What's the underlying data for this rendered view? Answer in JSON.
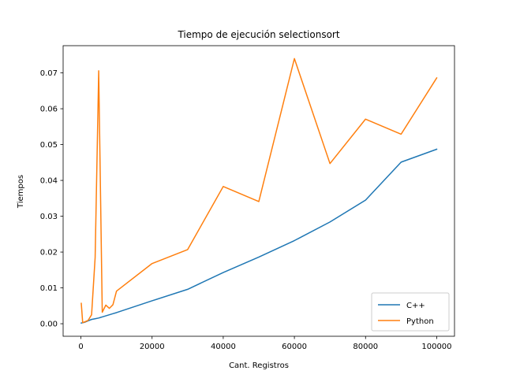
{
  "chart_data": {
    "type": "line",
    "title": "Tiempo de ejecución selectionsort",
    "xlabel": "Cant. Registros",
    "ylabel": "Tiempos",
    "xlim": [
      -5000,
      105000
    ],
    "ylim": [
      -0.0035,
      0.0776
    ],
    "xticks": [
      0,
      20000,
      40000,
      60000,
      80000,
      100000
    ],
    "xtick_labels": [
      "0",
      "20000",
      "40000",
      "60000",
      "80000",
      "100000"
    ],
    "yticks": [
      0.0,
      0.01,
      0.02,
      0.03,
      0.04,
      0.05,
      0.06,
      0.07
    ],
    "ytick_labels": [
      "0.00",
      "0.01",
      "0.02",
      "0.03",
      "0.04",
      "0.05",
      "0.06",
      "0.07"
    ],
    "grid": false,
    "legend_position": "lower-right",
    "series": [
      {
        "name": "C++",
        "color": "#1f77b4",
        "x": [
          100,
          1000,
          2000,
          3000,
          4000,
          5000,
          6000,
          7000,
          8000,
          9000,
          10000,
          20000,
          30000,
          40000,
          50000,
          60000,
          70000,
          80000,
          90000,
          100000
        ],
        "y": [
          0.0002,
          0.0004,
          0.0008,
          0.0012,
          0.0014,
          0.0016,
          0.0019,
          0.0022,
          0.0025,
          0.0028,
          0.0031,
          0.0064,
          0.0096,
          0.0143,
          0.0186,
          0.0232,
          0.0284,
          0.0345,
          0.0451,
          0.0487
        ]
      },
      {
        "name": "Python",
        "color": "#ff7f0e",
        "x": [
          100,
          500,
          1000,
          2000,
          3000,
          4000,
          5000,
          6000,
          7000,
          8000,
          9000,
          10000,
          20000,
          30000,
          40000,
          50000,
          60000,
          70000,
          80000,
          90000,
          100000
        ],
        "y": [
          0.0057,
          0.0003,
          0.0005,
          0.0009,
          0.0025,
          0.0185,
          0.0706,
          0.0032,
          0.0052,
          0.0043,
          0.0053,
          0.0091,
          0.0168,
          0.0207,
          0.0383,
          0.0341,
          0.074,
          0.0447,
          0.0571,
          0.0529,
          0.0686
        ]
      }
    ]
  }
}
